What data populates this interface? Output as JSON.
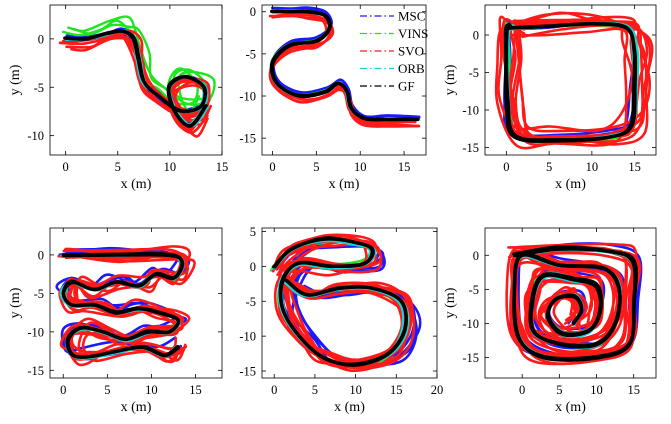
{
  "figure": {
    "legend": {
      "entries": [
        {
          "name": "MSC",
          "color": "#1a1aff",
          "dash": "dashdot"
        },
        {
          "name": "VINS",
          "color": "#1ee61e",
          "dash": "dashdot"
        },
        {
          "name": "SVO",
          "color": "#ff1a1a",
          "dash": "dashdot"
        },
        {
          "name": "ORB",
          "color": "#15d6d6",
          "dash": "dashdot"
        },
        {
          "name": "GF",
          "color": "#000000",
          "dash": "dashdot"
        }
      ]
    }
  },
  "chart_data": [
    {
      "type": "line",
      "panel": "top-left",
      "xlabel": "x (m)",
      "ylabel": "y (m)",
      "xlim": [
        -1.5,
        15
      ],
      "ylim": [
        -12,
        3.5
      ],
      "xticks": [
        "0",
        "5",
        "10",
        "15"
      ],
      "xtick_values": [
        0,
        5,
        10,
        15
      ],
      "yticks": [
        "0",
        "-5",
        "-10"
      ],
      "ytick_values": [
        0,
        -5,
        -10
      ],
      "trajectory": [
        [
          0,
          0
        ],
        [
          2,
          0
        ],
        [
          4,
          0.5
        ],
        [
          5.5,
          0.8
        ],
        [
          6.5,
          0
        ],
        [
          7,
          -2
        ],
        [
          7.5,
          -4.5
        ],
        [
          9,
          -6
        ],
        [
          11,
          -7.5
        ],
        [
          13,
          -7
        ],
        [
          13.3,
          -5
        ],
        [
          11.5,
          -4
        ],
        [
          10,
          -5
        ],
        [
          10.5,
          -7.5
        ],
        [
          12,
          -9
        ],
        [
          13.5,
          -7
        ]
      ],
      "series": [
        {
          "name": "MSC",
          "color": "#1a1aff",
          "count": 2,
          "dx": 0,
          "dy": 0,
          "jitter": 0.35
        },
        {
          "name": "VINS",
          "color": "#1ee61e",
          "count": 3,
          "dx": 0.2,
          "dy": 0.5,
          "jitter": 0.9
        },
        {
          "name": "SVO",
          "color": "#ff1a1a",
          "count": 7,
          "dx": 0,
          "dy": -0.4,
          "jitter": 0.75
        },
        {
          "name": "ORB",
          "color": "#15d6d6",
          "count": 2,
          "dx": 0,
          "dy": 0,
          "jitter": 0.25
        },
        {
          "name": "GF",
          "color": "#000000",
          "count": 2,
          "dx": 0,
          "dy": 0,
          "jitter": 0.15
        }
      ]
    },
    {
      "type": "line",
      "panel": "top-middle",
      "xlabel": "x (m)",
      "ylabel": "",
      "xlim": [
        -1.2,
        17.5
      ],
      "ylim": [
        -17,
        0.8
      ],
      "xticks": [
        "0",
        "5",
        "10",
        "15"
      ],
      "xtick_values": [
        0,
        5,
        10,
        15
      ],
      "yticks": [
        "0",
        "-5",
        "-10",
        "-15"
      ],
      "ytick_values": [
        0,
        -5,
        -10,
        -15
      ],
      "trajectory": [
        [
          0,
          0
        ],
        [
          2,
          0
        ],
        [
          4,
          0
        ],
        [
          6,
          -0.5
        ],
        [
          6.5,
          -2
        ],
        [
          5,
          -3.5
        ],
        [
          2,
          -4
        ],
        [
          0,
          -6
        ],
        [
          0.5,
          -8.5
        ],
        [
          3,
          -10
        ],
        [
          6,
          -9.5
        ],
        [
          7.5,
          -8.5
        ],
        [
          8.5,
          -9.5
        ],
        [
          9,
          -11.5
        ],
        [
          10.5,
          -12.7
        ],
        [
          13,
          -12.8
        ],
        [
          16.5,
          -12.8
        ]
      ],
      "series": [
        {
          "name": "MSC",
          "color": "#1a1aff",
          "count": 2,
          "dx": 0,
          "dy": 0.3,
          "jitter": 0.3
        },
        {
          "name": "VINS",
          "color": "#1ee61e",
          "count": 1,
          "dx": 0,
          "dy": 0,
          "jitter": 0.2
        },
        {
          "name": "SVO",
          "color": "#ff1a1a",
          "count": 4,
          "dx": 0,
          "dy": -0.5,
          "jitter": 0.5
        },
        {
          "name": "ORB",
          "color": "#15d6d6",
          "count": 1,
          "dx": 0,
          "dy": 0,
          "jitter": 0.15
        },
        {
          "name": "GF",
          "color": "#000000",
          "count": 2,
          "dx": 0,
          "dy": 0,
          "jitter": 0.1
        }
      ]
    },
    {
      "type": "line",
      "panel": "top-right",
      "xlabel": "x (m)",
      "ylabel": "y (m)",
      "xlim": [
        -2.5,
        17.5
      ],
      "ylim": [
        -16,
        4
      ],
      "xticks": [
        "0",
        "5",
        "10",
        "15"
      ],
      "xtick_values": [
        0,
        5,
        10,
        15
      ],
      "yticks": [
        "0",
        "-5",
        "-10",
        "-15"
      ],
      "ytick_values": [
        0,
        -5,
        -10,
        -15
      ],
      "trajectory": [
        [
          0,
          1
        ],
        [
          5,
          1.3
        ],
        [
          10,
          1.5
        ],
        [
          14,
          1
        ],
        [
          15,
          -2
        ],
        [
          15,
          -7
        ],
        [
          14.5,
          -12
        ],
        [
          12,
          -13.5
        ],
        [
          6,
          -14
        ],
        [
          1,
          -13.5
        ],
        [
          0,
          -9
        ],
        [
          0,
          -3
        ],
        [
          0,
          1
        ],
        [
          0.5,
          1.2
        ]
      ],
      "series": [
        {
          "name": "MSC",
          "color": "#1a1aff",
          "count": 3,
          "dx": 0,
          "dy": 0,
          "jitter": 0.8
        },
        {
          "name": "VINS",
          "color": "#1ee61e",
          "count": 2,
          "dx": 0,
          "dy": 0,
          "jitter": 0.5
        },
        {
          "name": "SVO",
          "color": "#ff1a1a",
          "count": 9,
          "dx": 0.5,
          "dy": 0,
          "jitter": 1.6
        },
        {
          "name": "ORB",
          "color": "#15d6d6",
          "count": 2,
          "dx": 0,
          "dy": 0,
          "jitter": 0.4
        },
        {
          "name": "GF",
          "color": "#000000",
          "count": 2,
          "dx": 0,
          "dy": 0,
          "jitter": 0.25
        }
      ]
    },
    {
      "type": "line",
      "panel": "bottom-left",
      "xlabel": "x (m)",
      "ylabel": "y (m)",
      "xlim": [
        -1.5,
        18
      ],
      "ylim": [
        -16,
        3.5
      ],
      "xticks": [
        "0",
        "5",
        "10",
        "15"
      ],
      "xtick_values": [
        0,
        5,
        10,
        15
      ],
      "yticks": [
        "0",
        "-5",
        "-10",
        "-15"
      ],
      "ytick_values": [
        0,
        -5,
        -10,
        -15
      ],
      "trajectory": [
        [
          0,
          0
        ],
        [
          6,
          0
        ],
        [
          12,
          0
        ],
        [
          13.5,
          -1
        ],
        [
          12.5,
          -3
        ],
        [
          10.5,
          -2.5
        ],
        [
          8.5,
          -4
        ],
        [
          6,
          -3.5
        ],
        [
          3.5,
          -4.5
        ],
        [
          1,
          -3.5
        ],
        [
          0,
          -5
        ],
        [
          1,
          -6.5
        ],
        [
          3.5,
          -6.5
        ],
        [
          6,
          -7.5
        ],
        [
          8.5,
          -7
        ],
        [
          11,
          -7.5
        ],
        [
          13,
          -8.5
        ],
        [
          12,
          -10
        ],
        [
          9.5,
          -10
        ],
        [
          7,
          -11
        ],
        [
          4.5,
          -10
        ],
        [
          2,
          -9.5
        ],
        [
          0.5,
          -11
        ],
        [
          1,
          -13
        ],
        [
          3,
          -13.2
        ],
        [
          6,
          -12.5
        ],
        [
          9,
          -12
        ],
        [
          11.5,
          -13
        ],
        [
          13,
          -12
        ]
      ],
      "series": [
        {
          "name": "MSC",
          "color": "#1a1aff",
          "count": 3,
          "dx": 0,
          "dy": 0.5,
          "jitter": 1.2
        },
        {
          "name": "VINS",
          "color": "#1ee61e",
          "count": 1,
          "dx": 0,
          "dy": 0,
          "jitter": 0.4
        },
        {
          "name": "SVO",
          "color": "#ff1a1a",
          "count": 8,
          "dx": 0.3,
          "dy": 0,
          "jitter": 1.3
        },
        {
          "name": "ORB",
          "color": "#15d6d6",
          "count": 2,
          "dx": 0,
          "dy": 0,
          "jitter": 0.3
        },
        {
          "name": "GF",
          "color": "#000000",
          "count": 2,
          "dx": 0,
          "dy": 0,
          "jitter": 0.15
        }
      ]
    },
    {
      "type": "line",
      "panel": "bottom-middle",
      "xlabel": "x (m)",
      "ylabel": "",
      "xlim": [
        -1.5,
        20
      ],
      "ylim": [
        -16,
        5.5
      ],
      "xticks": [
        "0",
        "5",
        "10",
        "15",
        "20"
      ],
      "xtick_values": [
        0,
        5,
        10,
        15,
        20
      ],
      "yticks": [
        "5",
        "0",
        "-5",
        "-10",
        "-15"
      ],
      "ytick_values": [
        5,
        0,
        -5,
        -10,
        -15
      ],
      "trajectory": [
        [
          0,
          0
        ],
        [
          2,
          2.5
        ],
        [
          6,
          4
        ],
        [
          10,
          3.5
        ],
        [
          12,
          2.5
        ],
        [
          11,
          0.5
        ],
        [
          7,
          0
        ],
        [
          3,
          0.5
        ],
        [
          1,
          -2
        ],
        [
          1,
          -6
        ],
        [
          3,
          -10
        ],
        [
          6,
          -13
        ],
        [
          10,
          -14
        ],
        [
          14,
          -12.5
        ],
        [
          16,
          -9
        ],
        [
          15.5,
          -5
        ],
        [
          12,
          -3
        ],
        [
          8,
          -3
        ],
        [
          4,
          -4
        ],
        [
          1.5,
          -2
        ]
      ],
      "series": [
        {
          "name": "MSC",
          "color": "#1a1aff",
          "count": 4,
          "dx": 1.2,
          "dy": 0,
          "jitter": 1.2
        },
        {
          "name": "VINS",
          "color": "#1ee61e",
          "count": 2,
          "dx": 0,
          "dy": 0,
          "jitter": 0.6
        },
        {
          "name": "SVO",
          "color": "#ff1a1a",
          "count": 9,
          "dx": 0.5,
          "dy": 0,
          "jitter": 1.3
        },
        {
          "name": "ORB",
          "color": "#15d6d6",
          "count": 2,
          "dx": 0,
          "dy": 0,
          "jitter": 0.4
        },
        {
          "name": "GF",
          "color": "#000000",
          "count": 2,
          "dx": 0,
          "dy": 0,
          "jitter": 0.2
        }
      ]
    },
    {
      "type": "line",
      "panel": "bottom-right",
      "xlabel": "x (m)",
      "ylabel": "y (m)",
      "xlim": [
        -5,
        18
      ],
      "ylim": [
        -18,
        4
      ],
      "xticks": [
        "0",
        "5",
        "10",
        "15"
      ],
      "xtick_values": [
        0,
        5,
        10,
        15
      ],
      "yticks": [
        "0",
        "-5",
        "-10",
        "-15"
      ],
      "ytick_values": [
        0,
        -5,
        -10,
        -15
      ],
      "trajectory": [
        [
          -1,
          0
        ],
        [
          5,
          1
        ],
        [
          12,
          0.5
        ],
        [
          15,
          -1
        ],
        [
          15,
          -7
        ],
        [
          14.5,
          -13
        ],
        [
          10,
          -15
        ],
        [
          3,
          -15
        ],
        [
          -0.5,
          -12
        ],
        [
          -1,
          -5
        ],
        [
          0,
          0
        ],
        [
          5,
          -1.5
        ],
        [
          11,
          -2
        ],
        [
          13,
          -5
        ],
        [
          12.5,
          -10
        ],
        [
          10,
          -13
        ],
        [
          5,
          -13
        ],
        [
          1.5,
          -11
        ],
        [
          1.5,
          -6
        ],
        [
          3,
          -3
        ],
        [
          7,
          -3.5
        ],
        [
          10,
          -4.5
        ],
        [
          10.5,
          -8
        ],
        [
          9,
          -11
        ],
        [
          5.5,
          -11.5
        ],
        [
          3.5,
          -9
        ],
        [
          4.5,
          -6.5
        ],
        [
          7,
          -6
        ],
        [
          8,
          -8
        ],
        [
          7,
          -10
        ]
      ],
      "series": [
        {
          "name": "MSC",
          "color": "#1a1aff",
          "count": 3,
          "dx": 0,
          "dy": 0,
          "jitter": 0.9
        },
        {
          "name": "VINS",
          "color": "#1ee61e",
          "count": 1,
          "dx": 0,
          "dy": 0,
          "jitter": 0.4
        },
        {
          "name": "SVO",
          "color": "#ff1a1a",
          "count": 8,
          "dx": 0,
          "dy": 0,
          "jitter": 1.4
        },
        {
          "name": "ORB",
          "color": "#15d6d6",
          "count": 2,
          "dx": 0,
          "dy": 0,
          "jitter": 0.4
        },
        {
          "name": "GF",
          "color": "#000000",
          "count": 3,
          "dx": 0,
          "dy": 0,
          "jitter": 0.2
        }
      ]
    }
  ]
}
